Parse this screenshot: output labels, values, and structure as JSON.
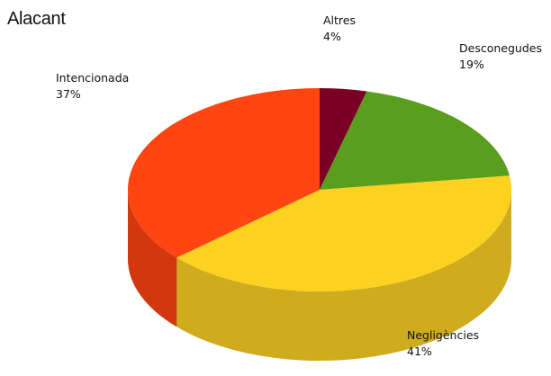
{
  "chart_data": {
    "type": "pie",
    "title": "Alacant",
    "three_d": true,
    "start_angle_deg": -90,
    "direction": "clockwise",
    "slices": [
      {
        "name": "Altres",
        "value": 4,
        "percent_label": "4%",
        "color": "#7a0026",
        "side_color": "#55001a"
      },
      {
        "name": "Desconegudes",
        "value": 19,
        "percent_label": "19%",
        "color": "#5a9e1e",
        "side_color": "#3e6e14"
      },
      {
        "name": "Negligències",
        "value": 41,
        "percent_label": "41%",
        "color": "#fcd11f",
        "side_color": "#cfab1e"
      },
      {
        "name": "Intencionada",
        "value": 37,
        "percent_label": "37%",
        "color": "#ff4511",
        "side_color": "#d1380e"
      }
    ]
  }
}
